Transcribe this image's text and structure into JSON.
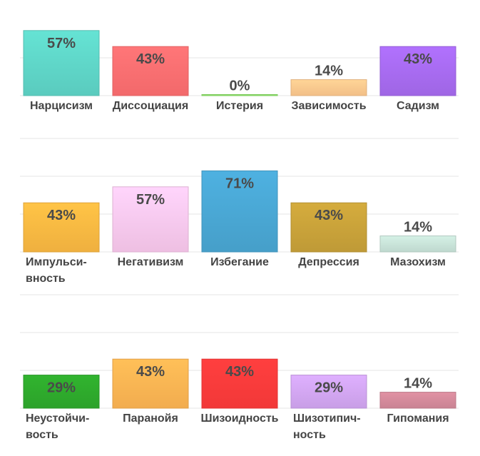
{
  "chart_data": [
    {
      "type": "bar",
      "categories": [
        "Нарцисизм",
        "Диссоциация",
        "Истерия",
        "Зависимость",
        "Садизм"
      ],
      "category_lines": [
        [
          "Нарцисизм"
        ],
        [
          "Диссоциация"
        ],
        [
          "Истерия"
        ],
        [
          "Зависимость"
        ],
        [
          "Садизм"
        ]
      ],
      "values": [
        57,
        43,
        0,
        14,
        43
      ],
      "value_labels": [
        "57%",
        "43%",
        "0%",
        "14%",
        "43%"
      ],
      "colors": [
        "#5fd6c8",
        "#ff6f71",
        "#8ee66a",
        "#ffc98e",
        "#a76bf0"
      ],
      "ylim": [
        0,
        100
      ],
      "grid": true
    },
    {
      "type": "bar",
      "categories": [
        "Импульси-вность",
        "Негативизм",
        "Избегание",
        "Депрессия",
        "Мазохизм"
      ],
      "category_lines": [
        [
          "Импульси-",
          "вность"
        ],
        [
          "Негативизм"
        ],
        [
          "Избегание"
        ],
        [
          "Депрессия"
        ],
        [
          "Мазохизм"
        ]
      ],
      "values": [
        43,
        57,
        71,
        43,
        14
      ],
      "value_labels": [
        "43%",
        "57%",
        "71%",
        "43%",
        "14%"
      ],
      "colors": [
        "#fcb942",
        "#fbc9ee",
        "#4aa7d4",
        "#c9a23a",
        "#c9e3d9"
      ],
      "ylim": [
        0,
        100
      ],
      "grid": true
    },
    {
      "type": "bar",
      "categories": [
        "Неустойчи-вость",
        "Паранойя",
        "Шизоидность",
        "Шизотипич-ность",
        "Гипомания"
      ],
      "category_lines": [
        [
          "Неустойчи-",
          "вость"
        ],
        [
          "Паранойя"
        ],
        [
          "Шизоидность"
        ],
        [
          "Шизотипич-",
          "ность"
        ],
        [
          "Гипомания"
        ]
      ],
      "values": [
        29,
        43,
        43,
        29,
        14
      ],
      "value_labels": [
        "29%",
        "43%",
        "43%",
        "29%",
        "14%"
      ],
      "colors": [
        "#2eaa2c",
        "#ffb553",
        "#ff3b3b",
        "#d2a6f2",
        "#d48a9b"
      ],
      "ylim": [
        0,
        100
      ],
      "grid": true
    }
  ]
}
